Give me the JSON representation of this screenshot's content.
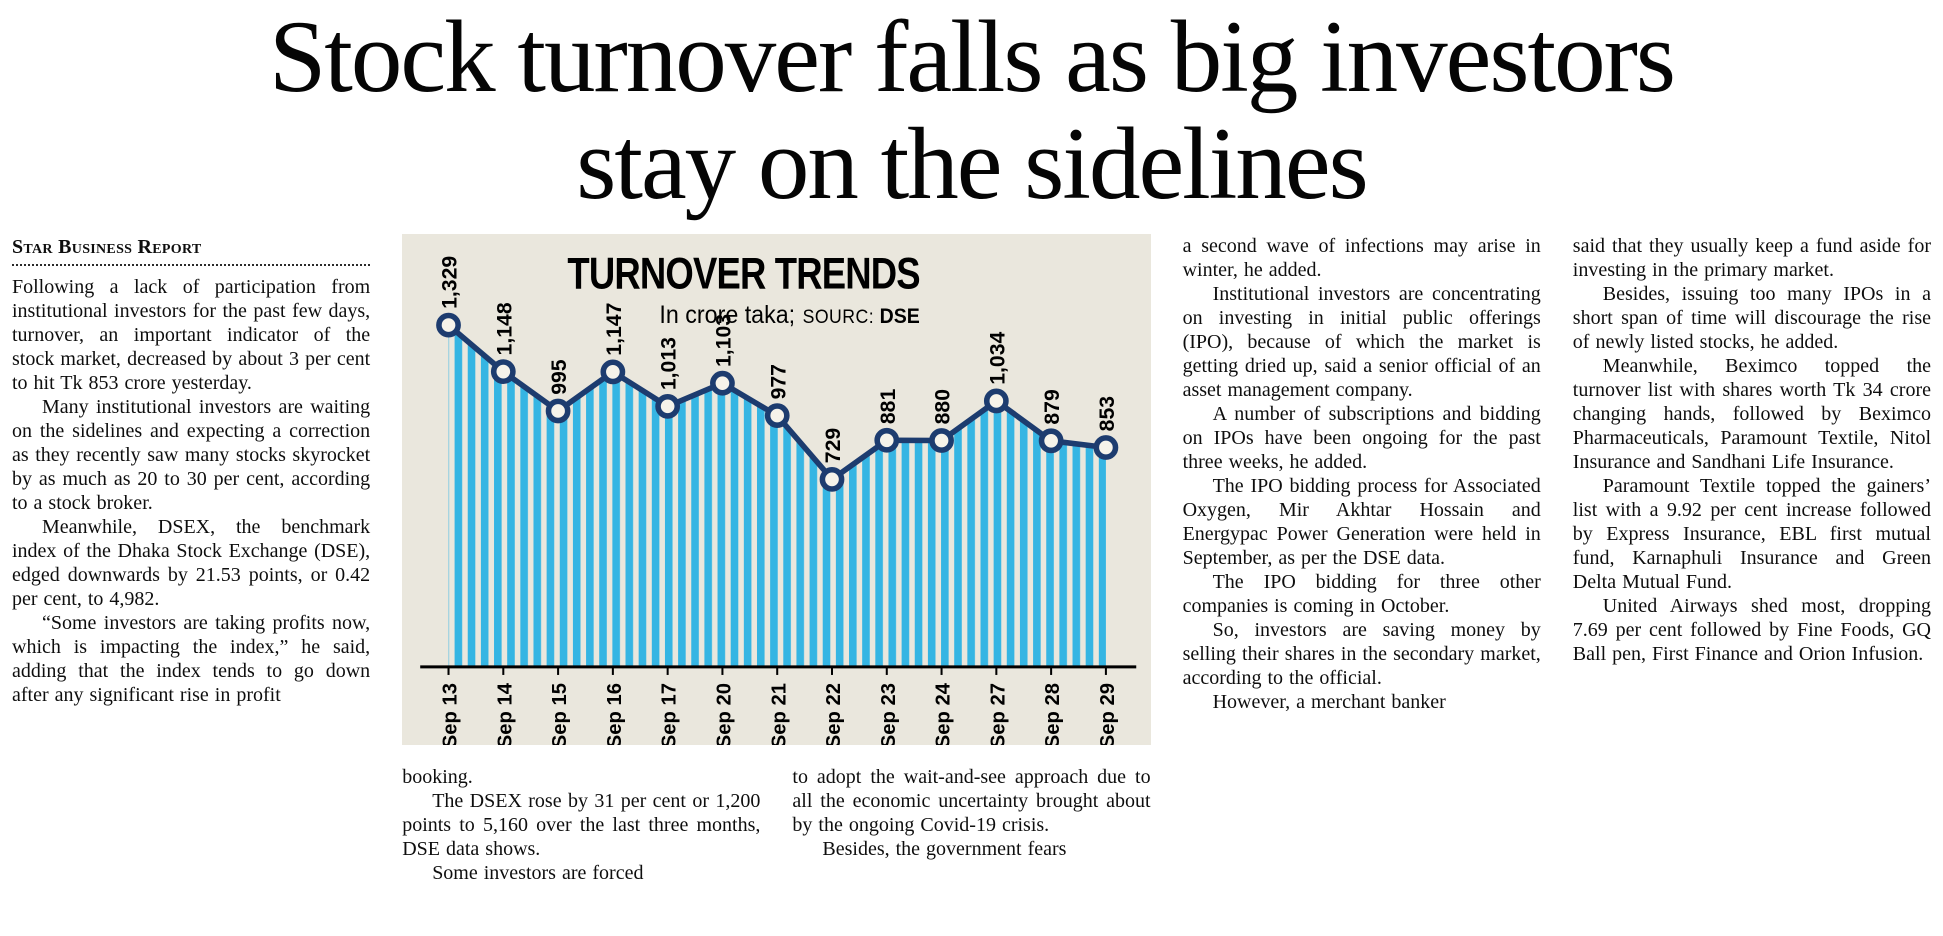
{
  "headline": {
    "line1": "Stock turnover falls as big investors",
    "line2": "stay on the sidelines"
  },
  "byline": "Star Business Report",
  "chart": {
    "title": "TURNOVER TRENDS",
    "unit_label": "In crore taka;",
    "source_label": "SOURC:",
    "source_value": "DSE",
    "line_color": "#1d3c6f",
    "stripe_color": "#35b5e3",
    "panel_background": "#eae7dd"
  },
  "chart_data": {
    "type": "area",
    "title": "TURNOVER TRENDS",
    "unit": "In crore taka",
    "source": "DSE",
    "categories": [
      "Sep 13",
      "Sep 14",
      "Sep 15",
      "Sep 16",
      "Sep 17",
      "Sep 20",
      "Sep 21",
      "Sep 22",
      "Sep 23",
      "Sep 24",
      "Sep 27",
      "Sep 28",
      "Sep 29"
    ],
    "values": [
      1329,
      1148,
      995,
      1147,
      1013,
      1103,
      977,
      729,
      881,
      880,
      1034,
      879,
      853
    ],
    "ylim": [
      0,
      1400
    ],
    "grid": false,
    "legend": "none",
    "value_labels": "rotated-90",
    "x_tick_labels": "rotated-90"
  },
  "columns": {
    "col1": [
      "Following a lack of participation from institutional investors for the past few days, turnover, an important indicator of the stock market, decreased by about 3 per cent to hit Tk 853 crore yesterday.",
      "Many institutional investors are waiting on the sidelines and expecting a correction as they recently saw many stocks skyrocket by as much as 20 to 30 per cent, according to a stock broker.",
      "Meanwhile, DSEX, the benchmark index of the Dhaka Stock Exchange (DSE), edged downwards by 21.53 points, or 0.42 per cent, to 4,982.",
      "“Some investors are taking profits now, which is impacting the index,” he said, adding that the index tends to go down after any significant rise in profit"
    ],
    "col2": [
      "booking.",
      "The DSEX rose by 31 per cent or 1,200 points to 5,160 over the last three months, DSE data shows.",
      "Some investors are forced"
    ],
    "col3": [
      "to adopt the wait-and-see approach due to all the economic uncertainty brought about by the ongoing Covid-19 crisis.",
      "Besides, the government fears"
    ],
    "col4": [
      "a second wave of infections may arise in winter, he added.",
      "Institutional investors are concentrating on investing in initial public offerings (IPO), because of which the market is getting dried up, said a senior official of an asset management company.",
      "A number of subscriptions and bidding on IPOs have been ongoing for the past three weeks, he added.",
      "The IPO bidding process for Associated Oxygen, Mir Akhtar Hossain and Energypac Power Generation were held in September, as per the DSE data.",
      "The IPO bidding for three other companies is coming in October.",
      "So, investors are saving money by selling their shares in the secondary market, according to the official.",
      "However, a merchant banker"
    ],
    "col5": [
      "said that they usually keep a fund aside for investing in the primary market.",
      "Besides, issuing too many IPOs in a short span of time will discourage the rise of newly listed stocks, he added.",
      "Meanwhile, Beximco topped the turnover list with shares worth Tk 34 crore changing hands, followed by Beximco Pharmaceuticals, Paramount Textile, Nitol Insurance and Sandhani Life Insurance.",
      "Paramount Textile topped the gainers’ list with a 9.92 per cent increase followed by Express Insurance, EBL first mutual fund, Karnaphuli Insurance and Green Delta Mutual Fund.",
      "United Airways shed most, dropping 7.69 per cent followed by Fine Foods, GQ Ball pen, First Finance and Orion Infusion."
    ]
  }
}
